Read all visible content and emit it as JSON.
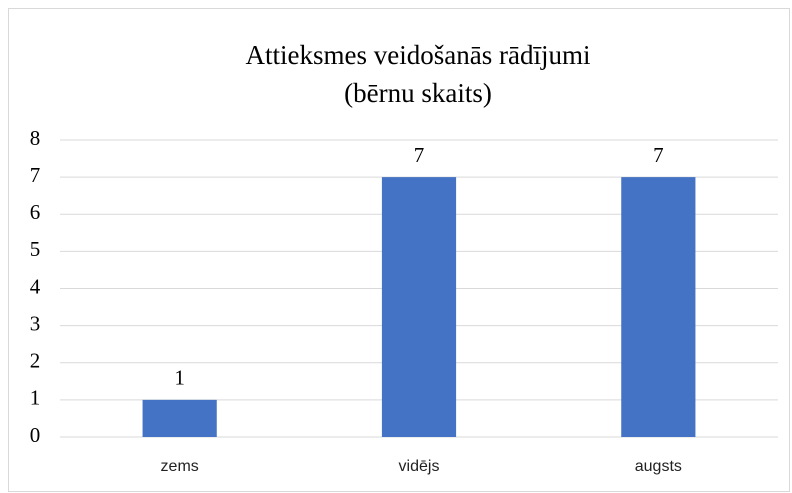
{
  "chart_data": {
    "type": "bar",
    "title": [
      "Attieksmes veidošanās rādījumi",
      "(bērnu skaits)"
    ],
    "categories": [
      "zems",
      "vidējs",
      "augsts"
    ],
    "values": [
      1,
      7,
      7
    ],
    "color": "#4472c4",
    "ylim": [
      0,
      8
    ],
    "yticks": [
      0,
      1,
      2,
      3,
      4,
      5,
      6,
      7,
      8
    ],
    "grid": true,
    "data_labels": true
  }
}
